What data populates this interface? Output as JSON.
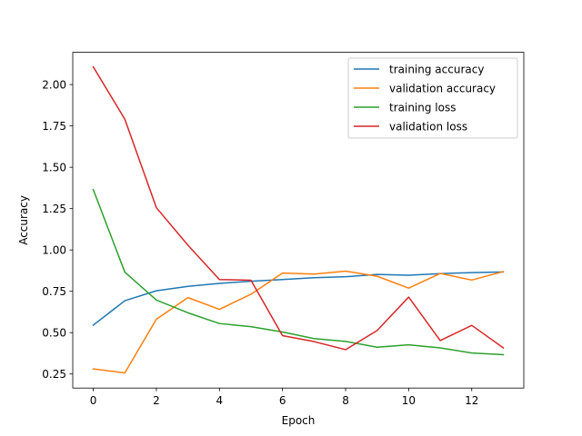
{
  "chart_data": {
    "type": "line",
    "title": "",
    "xlabel": "Epoch",
    "ylabel": "Accuracy",
    "xlim": [
      -0.65,
      13.65
    ],
    "ylim": [
      0.165,
      2.195
    ],
    "xticks": [
      0,
      2,
      4,
      6,
      8,
      10,
      12
    ],
    "xtick_labels": [
      "0",
      "2",
      "4",
      "6",
      "8",
      "10",
      "12"
    ],
    "yticks": [
      0.25,
      0.5,
      0.75,
      1.0,
      1.25,
      1.5,
      1.75,
      2.0
    ],
    "ytick_labels": [
      "0.25",
      "0.50",
      "0.75",
      "1.00",
      "1.25",
      "1.50",
      "1.75",
      "2.00"
    ],
    "grid": false,
    "legend_position": "top-right",
    "x": [
      0,
      1,
      2,
      3,
      4,
      5,
      6,
      7,
      8,
      9,
      10,
      11,
      12,
      13
    ],
    "series": [
      {
        "name": "training accuracy",
        "color": "#1f77b4",
        "values": [
          0.545,
          0.693,
          0.753,
          0.78,
          0.798,
          0.811,
          0.821,
          0.832,
          0.838,
          0.852,
          0.847,
          0.857,
          0.863,
          0.867
        ]
      },
      {
        "name": "validation accuracy",
        "color": "#ff7f0e",
        "values": [
          0.281,
          0.256,
          0.581,
          0.712,
          0.641,
          0.732,
          0.86,
          0.854,
          0.872,
          0.841,
          0.769,
          0.858,
          0.818,
          0.869
        ]
      },
      {
        "name": "training loss",
        "color": "#2ca02c",
        "values": [
          1.365,
          0.866,
          0.697,
          0.62,
          0.555,
          0.536,
          0.504,
          0.464,
          0.447,
          0.412,
          0.426,
          0.408,
          0.377,
          0.367
        ]
      },
      {
        "name": "validation loss",
        "color": "#d62728",
        "values": [
          2.107,
          1.791,
          1.256,
          1.029,
          0.821,
          0.817,
          0.482,
          0.446,
          0.397,
          0.513,
          0.715,
          0.452,
          0.544,
          0.408
        ]
      }
    ]
  }
}
